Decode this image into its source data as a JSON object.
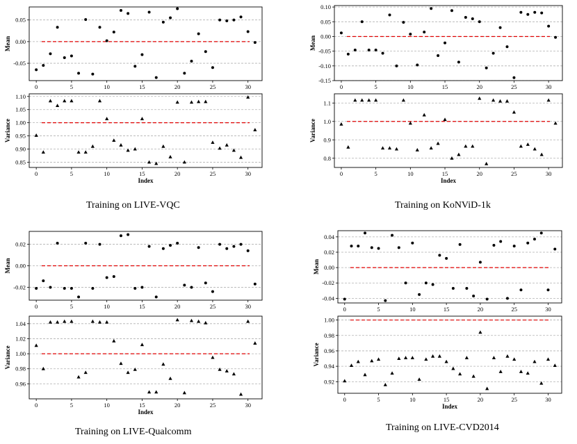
{
  "figure": {
    "background": "#ffffff",
    "marker_color": "#000000",
    "reference_color": "#e00000",
    "grid_color": "#b0b0b0"
  },
  "chart_data": [
    {
      "type": "scatter",
      "title": "Training on LIVE-VQC",
      "mean": {
        "ylabel": "Mean",
        "ylim": [
          -0.09,
          0.08
        ],
        "yticks": [
          "0.05",
          "0.00",
          "-0.05"
        ],
        "ytick_values": [
          0.05,
          0.0,
          -0.05
        ],
        "reference": 0.0,
        "values": [
          -0.065,
          -0.055,
          -0.028,
          0.033,
          -0.037,
          -0.033,
          -0.073,
          0.051,
          -0.075,
          0.033,
          0.002,
          0.022,
          0.072,
          0.065,
          -0.057,
          -0.03,
          0.068,
          -0.083,
          0.045,
          0.055,
          0.076,
          -0.073,
          -0.045,
          0.018,
          -0.023,
          -0.06,
          0.05,
          0.048,
          0.05,
          0.057,
          0.023,
          -0.002
        ]
      },
      "variance": {
        "ylabel": "Variance",
        "xlabel": "Index",
        "ylim": [
          0.83,
          1.11
        ],
        "yticks": [
          "1.10",
          "1.05",
          "1.00",
          "0.95",
          "0.90",
          "0.85"
        ],
        "ytick_values": [
          1.1,
          1.05,
          1.0,
          0.95,
          0.9,
          0.85
        ],
        "reference": 1.0,
        "values": [
          0.952,
          0.888,
          1.083,
          1.065,
          1.083,
          1.083,
          0.888,
          0.888,
          0.91,
          1.083,
          1.015,
          0.933,
          0.915,
          0.895,
          0.9,
          1.015,
          0.85,
          0.845,
          0.91,
          0.87,
          1.078,
          0.85,
          1.078,
          1.08,
          1.08,
          0.925,
          0.903,
          0.915,
          0.895,
          0.868,
          1.097,
          0.973
        ]
      },
      "xticks": [
        0,
        5,
        10,
        15,
        20,
        25,
        30
      ],
      "xlim": [
        -1,
        32
      ]
    },
    {
      "type": "scatter",
      "title": "Training on KoNViD-1k",
      "mean": {
        "ylabel": "Mean",
        "ylim": [
          -0.15,
          0.105
        ],
        "yticks": [
          "0.10",
          "0.05",
          "0.00",
          "-0.05",
          "-0.10",
          "-0.15"
        ],
        "ytick_values": [
          0.1,
          0.05,
          0.0,
          -0.05,
          -0.1,
          -0.15
        ],
        "reference": 0.0,
        "values": [
          0.012,
          -0.06,
          -0.046,
          0.05,
          -0.046,
          -0.046,
          -0.057,
          0.073,
          -0.1,
          0.048,
          0.008,
          -0.097,
          0.015,
          0.095,
          -0.065,
          -0.022,
          0.088,
          -0.087,
          0.065,
          0.06,
          0.05,
          -0.107,
          -0.057,
          0.03,
          -0.035,
          -0.14,
          0.082,
          0.075,
          0.082,
          0.08,
          0.035,
          -0.003
        ]
      },
      "variance": {
        "ylabel": "Variance",
        "xlabel": "Index",
        "ylim": [
          0.75,
          1.15
        ],
        "yticks": [
          "1.1",
          "1.0",
          "0.9",
          "0.8"
        ],
        "ytick_values": [
          1.1,
          1.0,
          0.9,
          0.8
        ],
        "reference": 1.0,
        "values": [
          0.985,
          0.86,
          1.115,
          1.115,
          1.115,
          1.115,
          0.855,
          0.855,
          0.85,
          1.115,
          0.99,
          0.845,
          1.035,
          0.855,
          0.88,
          1.01,
          0.8,
          0.82,
          0.865,
          0.865,
          1.125,
          0.77,
          1.115,
          1.11,
          1.11,
          1.05,
          0.865,
          0.875,
          0.85,
          0.82,
          1.115,
          0.99
        ]
      },
      "xticks": [
        0,
        5,
        10,
        15,
        20,
        25,
        30
      ],
      "xlim": [
        -1,
        32
      ]
    },
    {
      "type": "scatter",
      "title": "Training on LIVE-Qualcomm",
      "mean": {
        "ylabel": "Mean",
        "ylim": [
          -0.032,
          0.032
        ],
        "yticks": [
          "0.02",
          "0.00",
          "-0.02"
        ],
        "ytick_values": [
          0.02,
          0.0,
          -0.02
        ],
        "reference": 0.0,
        "values": [
          -0.021,
          -0.014,
          -0.02,
          0.021,
          -0.021,
          -0.021,
          -0.029,
          0.021,
          -0.021,
          0.02,
          -0.011,
          -0.01,
          0.028,
          0.029,
          -0.021,
          -0.02,
          0.018,
          -0.029,
          0.016,
          0.019,
          0.021,
          -0.018,
          -0.02,
          0.017,
          -0.016,
          -0.024,
          0.02,
          0.016,
          0.018,
          0.02,
          0.014,
          -0.017
        ]
      },
      "variance": {
        "ylabel": "Variance",
        "xlabel": "Index",
        "ylim": [
          0.94,
          1.05
        ],
        "yticks": [
          "1.04",
          "1.02",
          "1.00",
          "0.98",
          "0.96"
        ],
        "ytick_values": [
          1.04,
          1.02,
          1.0,
          0.98,
          0.96
        ],
        "reference": 1.0,
        "values": [
          1.011,
          0.98,
          1.042,
          1.042,
          1.043,
          1.043,
          0.969,
          0.975,
          1.043,
          1.042,
          1.042,
          1.017,
          0.987,
          0.975,
          0.979,
          1.012,
          0.949,
          0.949,
          0.986,
          0.967,
          1.045,
          0.948,
          1.044,
          1.043,
          1.041,
          0.995,
          0.979,
          0.977,
          0.973,
          0.946,
          1.043,
          1.014
        ]
      },
      "xticks": [
        0,
        5,
        10,
        15,
        20,
        25,
        30
      ],
      "xlim": [
        -1,
        32
      ]
    },
    {
      "type": "scatter",
      "title": "Training on LIVE-CVD2014",
      "mean": {
        "ylabel": "Mean",
        "ylim": [
          -0.046,
          0.048
        ],
        "yticks": [
          "0.04",
          "0.02",
          "0.00",
          "-0.02",
          "-0.04"
        ],
        "ytick_values": [
          0.04,
          0.02,
          0.0,
          -0.02,
          -0.04
        ],
        "reference": 0.0,
        "values": [
          -0.041,
          0.028,
          0.028,
          0.045,
          0.026,
          0.025,
          -0.043,
          0.042,
          0.026,
          -0.02,
          0.032,
          -0.035,
          -0.02,
          -0.022,
          0.016,
          0.012,
          -0.027,
          0.03,
          -0.027,
          -0.037,
          0.007,
          -0.041,
          0.029,
          0.034,
          -0.04,
          0.028,
          -0.029,
          0.032,
          0.037,
          0.045,
          -0.029,
          0.024
        ]
      },
      "variance": {
        "ylabel": "Variance",
        "xlabel": "Index",
        "ylim": [
          0.905,
          1.005
        ],
        "yticks": [
          "1.00",
          "0.98",
          "0.96",
          "0.94",
          "0.92"
        ],
        "ytick_values": [
          1.0,
          0.98,
          0.96,
          0.94,
          0.92
        ],
        "reference": 1.0,
        "values": [
          0.921,
          0.941,
          0.946,
          0.929,
          0.947,
          0.949,
          0.916,
          0.931,
          0.95,
          0.951,
          0.951,
          0.923,
          0.949,
          0.953,
          0.953,
          0.946,
          0.937,
          0.93,
          0.951,
          0.927,
          0.984,
          0.911,
          0.951,
          0.933,
          0.953,
          0.949,
          0.933,
          0.931,
          0.946,
          0.918,
          0.949,
          0.941
        ]
      },
      "xticks": [
        0,
        5,
        10,
        15,
        20,
        25,
        30
      ],
      "xlim": [
        -1,
        32
      ]
    }
  ]
}
